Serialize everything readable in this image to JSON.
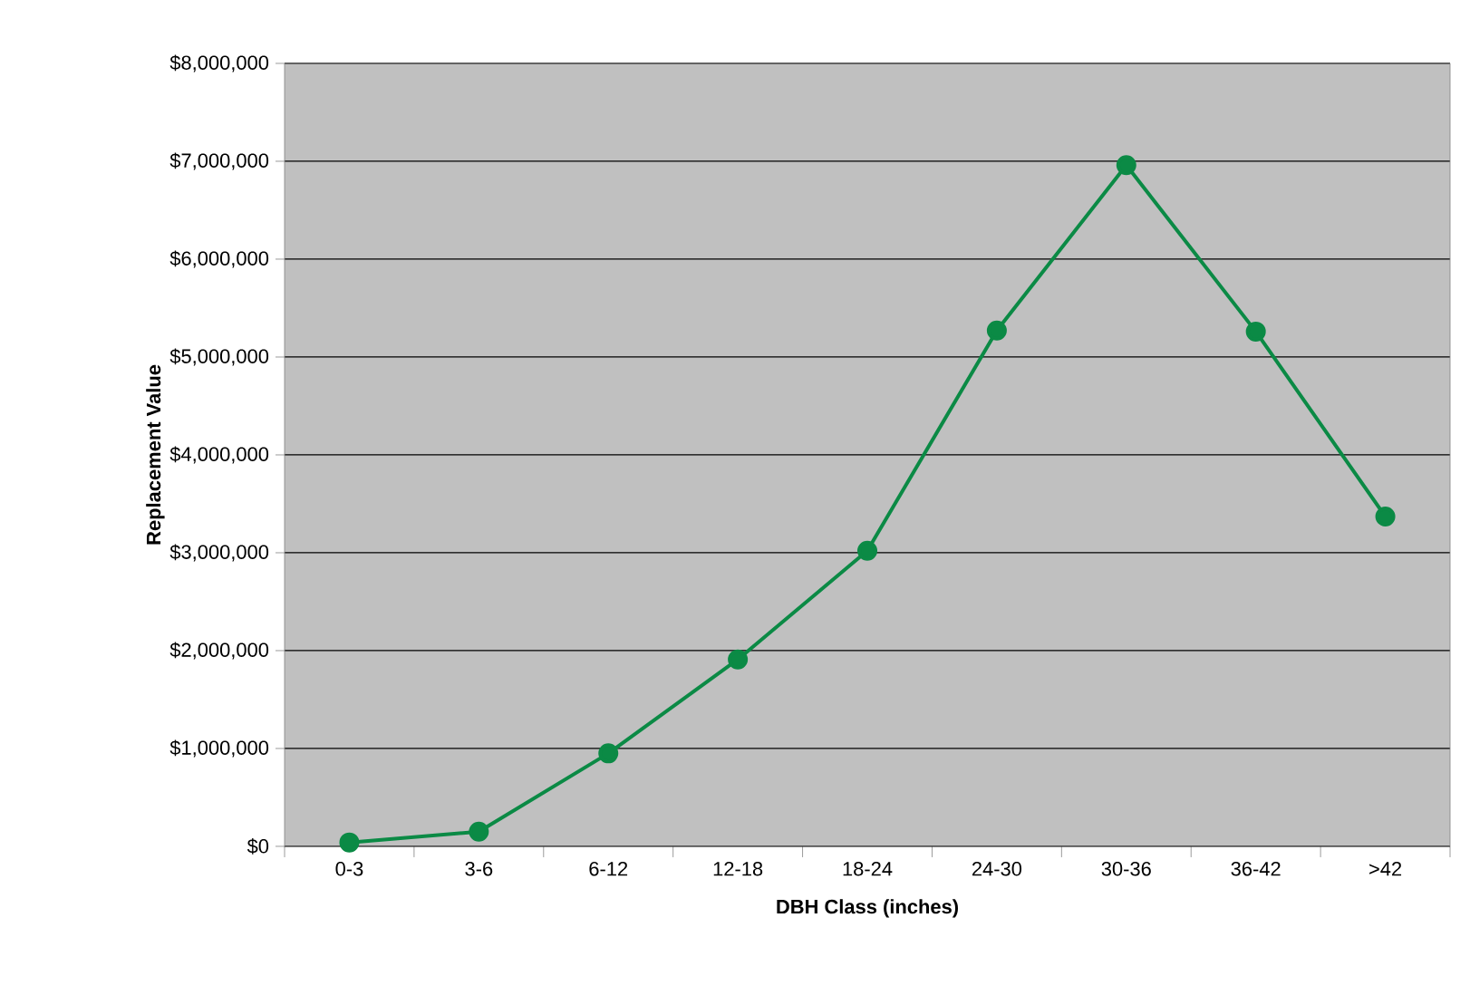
{
  "chart_data": {
    "type": "line",
    "xlabel": "DBH Class (inches)",
    "ylabel": "Replacement Value",
    "categories": [
      "0-3",
      "3-6",
      "6-12",
      "12-18",
      "18-24",
      "24-30",
      "30-36",
      "36-42",
      ">42"
    ],
    "values": [
      40000,
      150000,
      950000,
      1910000,
      3020000,
      5270000,
      6960000,
      5260000,
      3370000
    ],
    "color": "#0b8a45",
    "marker": "circle",
    "line_style": "solid",
    "grid": "y",
    "ylim": [
      0,
      8000000
    ],
    "yticks": [
      {
        "value": 0,
        "label": "$0"
      },
      {
        "value": 1000000,
        "label": "$1,000,000"
      },
      {
        "value": 2000000,
        "label": "$2,000,000"
      },
      {
        "value": 3000000,
        "label": "$3,000,000"
      },
      {
        "value": 4000000,
        "label": "$4,000,000"
      },
      {
        "value": 5000000,
        "label": "$5,000,000"
      },
      {
        "value": 6000000,
        "label": "$6,000,000"
      },
      {
        "value": 7000000,
        "label": "$7,000,000"
      },
      {
        "value": 8000000,
        "label": "$8,000,000"
      }
    ]
  }
}
